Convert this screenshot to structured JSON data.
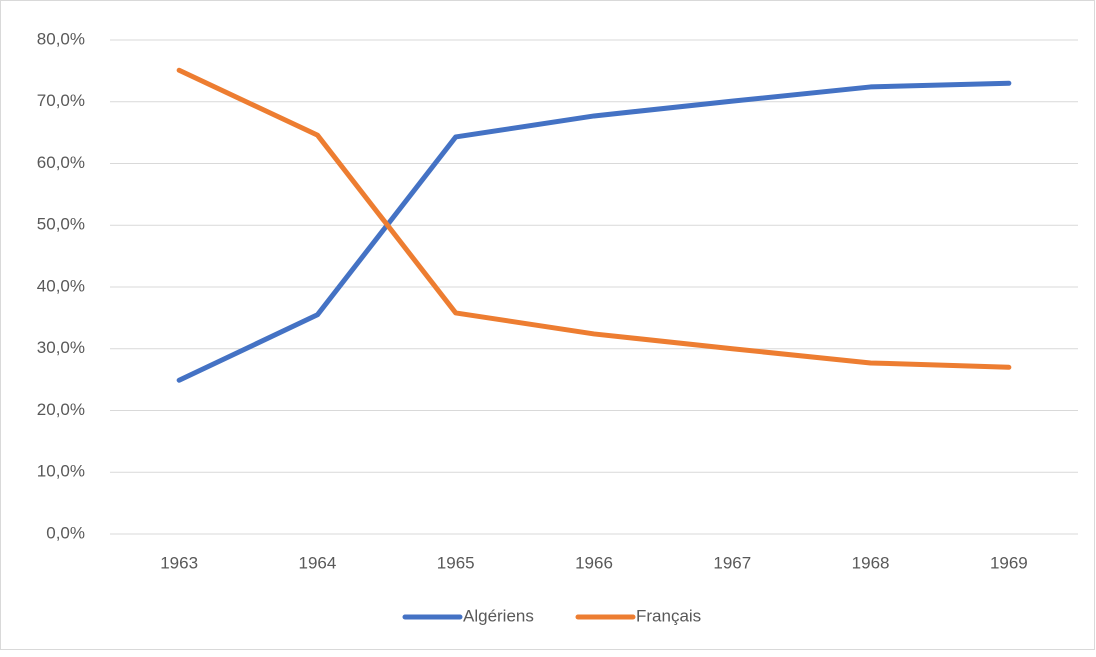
{
  "chart_data": {
    "type": "line",
    "categories": [
      "1963",
      "1964",
      "1965",
      "1966",
      "1967",
      "1968",
      "1969"
    ],
    "series": [
      {
        "name": "Algériens",
        "color": "#4472c4",
        "values": [
          24.9,
          35.5,
          64.3,
          67.7,
          70.1,
          72.4,
          73.0
        ]
      },
      {
        "name": "Français",
        "color": "#ed7d31",
        "values": [
          75.1,
          64.6,
          35.8,
          32.4,
          30.0,
          27.7,
          27.0
        ]
      }
    ],
    "ylim": [
      0,
      80
    ],
    "yticks": [
      {
        "value": 0,
        "label": "0,0%"
      },
      {
        "value": 10,
        "label": "10,0%"
      },
      {
        "value": 20,
        "label": "20,0%"
      },
      {
        "value": 30,
        "label": "30,0%"
      },
      {
        "value": 40,
        "label": "40,0%"
      },
      {
        "value": 50,
        "label": "50,0%"
      },
      {
        "value": 60,
        "label": "60,0%"
      },
      {
        "value": 70,
        "label": "70,0%"
      },
      {
        "value": 80,
        "label": "80,0%"
      }
    ],
    "grid": true,
    "legend": "bottom"
  }
}
